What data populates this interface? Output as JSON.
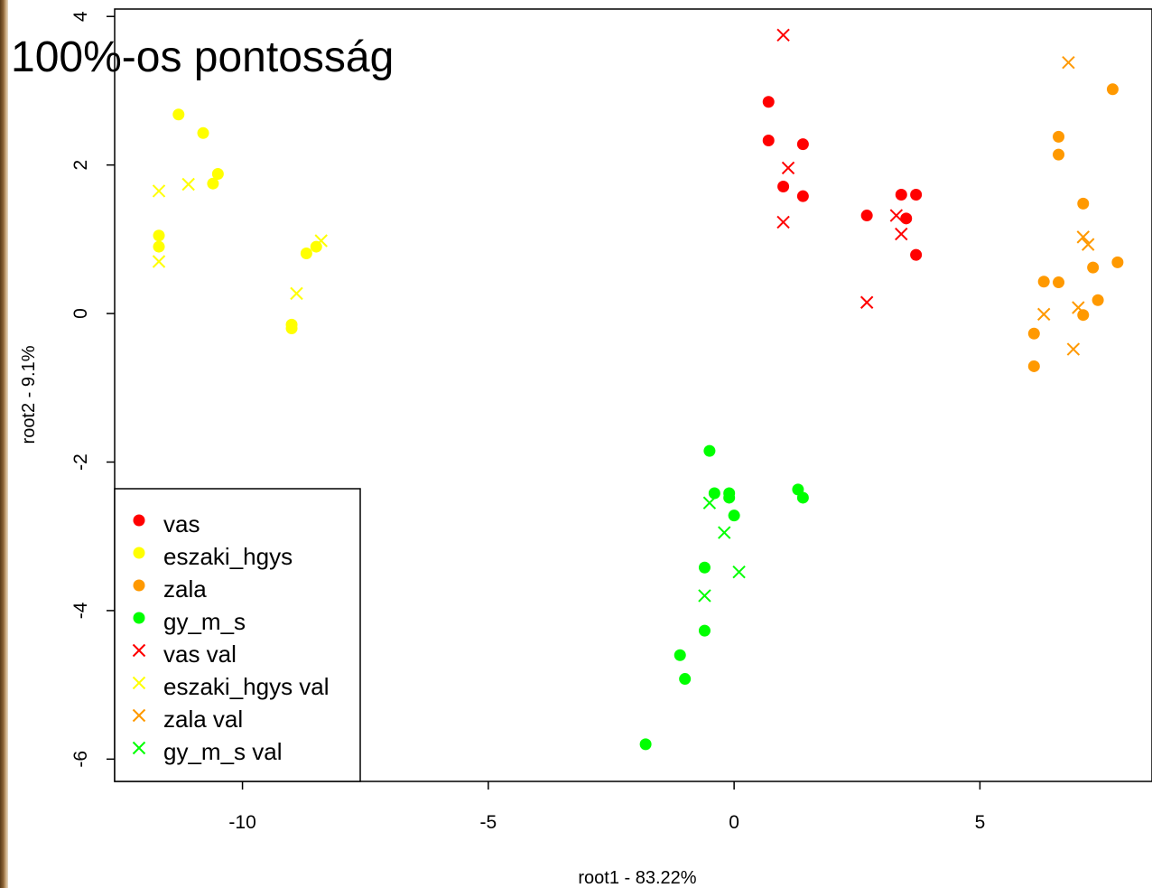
{
  "overlay_title": "100%-os pontosság",
  "chart_data": {
    "type": "scatter",
    "title": "",
    "xlabel": "root1 - 83.22%",
    "ylabel": "root2 - 9.1%",
    "xlim": [
      -12.6,
      8.5
    ],
    "ylim": [
      -6.3,
      4.1
    ],
    "xticks": [
      -10,
      -5,
      0,
      5
    ],
    "xtick_labels": [
      "-10",
      "-5",
      "0",
      "5"
    ],
    "yticks": [
      -6,
      -4,
      -2,
      0,
      2,
      4
    ],
    "ytick_labels": [
      "-6",
      "-4",
      "-2",
      "0",
      "2",
      "4"
    ],
    "grid": false,
    "legend_position": "bottom-left",
    "series": [
      {
        "name": "vas",
        "color": "#ff0000",
        "marker": "dot",
        "points": [
          [
            0.7,
            2.85
          ],
          [
            0.7,
            2.33
          ],
          [
            1.0,
            1.71
          ],
          [
            1.4,
            2.28
          ],
          [
            1.4,
            1.58
          ],
          [
            2.7,
            1.32
          ],
          [
            3.4,
            1.6
          ],
          [
            3.5,
            1.28
          ],
          [
            3.7,
            1.6
          ],
          [
            3.7,
            0.79
          ]
        ]
      },
      {
        "name": "eszaki_hgys",
        "color": "#ffff00",
        "marker": "dot",
        "points": [
          [
            -11.3,
            2.68
          ],
          [
            -10.8,
            2.43
          ],
          [
            -10.5,
            1.88
          ],
          [
            -10.6,
            1.75
          ],
          [
            -11.7,
            1.05
          ],
          [
            -11.7,
            0.9
          ],
          [
            -8.7,
            0.81
          ],
          [
            -8.5,
            0.9
          ],
          [
            -9.0,
            -0.15
          ],
          [
            -9.0,
            -0.2
          ]
        ]
      },
      {
        "name": "zala",
        "color": "#ff9900",
        "marker": "dot",
        "points": [
          [
            7.7,
            3.02
          ],
          [
            6.6,
            2.38
          ],
          [
            6.6,
            2.14
          ],
          [
            7.1,
            1.48
          ],
          [
            7.8,
            0.69
          ],
          [
            7.3,
            0.62
          ],
          [
            6.3,
            0.43
          ],
          [
            6.6,
            0.42
          ],
          [
            7.4,
            0.18
          ],
          [
            7.1,
            -0.02
          ],
          [
            6.1,
            -0.27
          ],
          [
            6.1,
            -0.71
          ]
        ]
      },
      {
        "name": "gy_m_s",
        "color": "#00ff00",
        "marker": "dot",
        "points": [
          [
            -0.5,
            -1.85
          ],
          [
            -0.4,
            -2.42
          ],
          [
            -0.1,
            -2.42
          ],
          [
            -0.1,
            -2.48
          ],
          [
            0.0,
            -2.72
          ],
          [
            1.3,
            -2.37
          ],
          [
            1.4,
            -2.48
          ],
          [
            -0.6,
            -3.42
          ],
          [
            -0.6,
            -4.27
          ],
          [
            -1.1,
            -4.6
          ],
          [
            -1.0,
            -4.92
          ],
          [
            -1.8,
            -5.8
          ]
        ]
      },
      {
        "name": "vas val",
        "color": "#ff0000",
        "marker": "x",
        "points": [
          [
            1.0,
            3.75
          ],
          [
            1.1,
            1.96
          ],
          [
            1.0,
            1.23
          ],
          [
            3.3,
            1.32
          ],
          [
            3.4,
            1.07
          ],
          [
            2.7,
            0.15
          ]
        ]
      },
      {
        "name": "eszaki_hgys val",
        "color": "#ffff00",
        "marker": "x",
        "points": [
          [
            -11.7,
            1.65
          ],
          [
            -11.1,
            1.74
          ],
          [
            -11.7,
            0.7
          ],
          [
            -8.4,
            0.98
          ],
          [
            -8.9,
            0.27
          ]
        ]
      },
      {
        "name": "zala val",
        "color": "#ff9900",
        "marker": "x",
        "points": [
          [
            6.8,
            3.38
          ],
          [
            7.1,
            1.03
          ],
          [
            7.2,
            0.93
          ],
          [
            7.0,
            0.08
          ],
          [
            6.3,
            -0.01
          ],
          [
            6.9,
            -0.48
          ]
        ]
      },
      {
        "name": "gy_m_s val",
        "color": "#00ff00",
        "marker": "x",
        "points": [
          [
            -0.5,
            -2.55
          ],
          [
            -0.2,
            -2.95
          ],
          [
            0.1,
            -3.48
          ],
          [
            -0.6,
            -3.8
          ]
        ]
      }
    ]
  }
}
